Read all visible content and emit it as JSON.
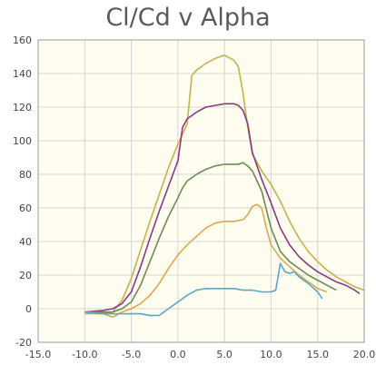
{
  "chart_data": {
    "type": "line",
    "title": "Cl/Cd v Alpha",
    "xlabel": "",
    "ylabel": "",
    "xlim": [
      -15,
      20
    ],
    "ylim": [
      -20,
      160
    ],
    "xticks": [
      -15,
      -10,
      -5,
      0,
      5,
      10,
      15,
      20
    ],
    "yticks": [
      -20,
      0,
      20,
      40,
      60,
      80,
      100,
      120,
      140,
      160
    ],
    "xtick_labels": [
      "-15.0",
      "-10.0",
      "-5.0",
      "0.0",
      "5.0",
      "10.0",
      "15.0",
      "20.0"
    ],
    "ytick_labels": [
      "-20",
      "0",
      "20",
      "40",
      "60",
      "80",
      "100",
      "120",
      "140",
      "160"
    ],
    "grid": true,
    "legend": "none",
    "plot_background": "#fffdf0",
    "series": [
      {
        "color": "#c8b04a",
        "x": [
          -10,
          -8,
          -7,
          -6,
          -5,
          -4,
          -3,
          -2,
          -1,
          0,
          1,
          1.5,
          2,
          3,
          4,
          5,
          6,
          6.5,
          7,
          7.5,
          8,
          9,
          10,
          11,
          12,
          13,
          14,
          15,
          16,
          17,
          18,
          19,
          20
        ],
        "y": [
          -3,
          -3,
          -2,
          5,
          18,
          35,
          52,
          68,
          84,
          98,
          110,
          139,
          142,
          146,
          149,
          151,
          148,
          144,
          128,
          108,
          92,
          82,
          74,
          64,
          52,
          42,
          34,
          28,
          23,
          19,
          16,
          13,
          11
        ]
      },
      {
        "color": "#8a3a82",
        "x": [
          -10,
          -8,
          -7,
          -6,
          -5,
          -4,
          -3,
          -2,
          -1,
          0,
          0.5,
          1,
          2,
          3,
          4,
          5,
          6,
          6.5,
          7,
          7.5,
          8,
          9,
          10,
          11,
          12,
          13,
          14,
          15,
          16,
          17,
          18,
          19,
          19.5
        ],
        "y": [
          -2,
          -1,
          0,
          3,
          10,
          25,
          42,
          58,
          73,
          88,
          108,
          113,
          117,
          120,
          121,
          122,
          122,
          121,
          118,
          110,
          93,
          77,
          63,
          48,
          38,
          31,
          26,
          22,
          19,
          16,
          14,
          11,
          9
        ]
      },
      {
        "color": "#6e8a55",
        "x": [
          -10,
          -8,
          -7,
          -6,
          -5,
          -4,
          -3,
          -2,
          -1,
          0,
          0.5,
          1,
          2,
          3,
          4,
          5,
          6,
          6.5,
          7,
          7.5,
          8,
          9,
          10,
          11,
          12,
          13,
          14,
          15,
          16,
          17
        ],
        "y": [
          -2,
          -2,
          -2,
          0,
          4,
          14,
          28,
          42,
          55,
          66,
          72,
          76,
          80,
          83,
          85,
          86,
          86,
          86,
          87,
          85,
          82,
          70,
          48,
          34,
          28,
          24,
          20,
          17,
          14,
          11
        ]
      },
      {
        "color": "#e0a84a",
        "x": [
          -10,
          -8,
          -7,
          -6,
          -5,
          -4,
          -3,
          -2,
          -1,
          0,
          1,
          2,
          3,
          4,
          5,
          6,
          7,
          7.5,
          8,
          8.5,
          9,
          9.5,
          10,
          11,
          12,
          13,
          14,
          15,
          16
        ],
        "y": [
          -2,
          -3,
          -5,
          -2,
          0,
          3,
          8,
          15,
          24,
          32,
          38,
          43,
          48,
          51,
          52,
          52,
          53,
          56,
          61,
          62,
          60,
          48,
          38,
          30,
          25,
          20,
          16,
          12,
          10
        ]
      },
      {
        "color": "#5aa8c8",
        "x": [
          -10,
          -8,
          -7,
          -6,
          -5,
          -4,
          -3,
          -2,
          -1,
          0,
          1,
          2,
          3,
          4,
          5,
          6,
          7,
          8,
          9,
          10,
          10.5,
          11,
          11.5,
          12,
          12.5,
          13,
          14,
          15,
          15.5
        ],
        "y": [
          -2,
          -3,
          -3,
          -3,
          -3,
          -3,
          -4,
          -4,
          0,
          4,
          8,
          11,
          12,
          12,
          12,
          12,
          11,
          11,
          10,
          10,
          11,
          27,
          22,
          21,
          22,
          19,
          15,
          10,
          6
        ]
      }
    ]
  }
}
